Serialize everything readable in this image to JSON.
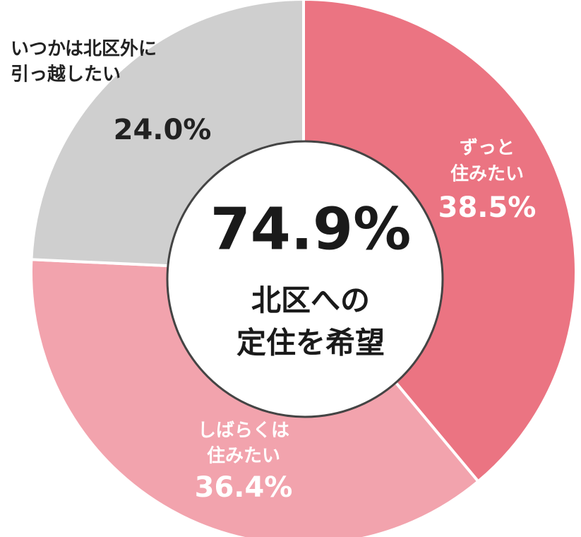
{
  "chart_data": {
    "type": "donut",
    "categories": [
      [
        "ずっと",
        "住みたい"
      ],
      [
        "しばらくは",
        "住みたい"
      ],
      [
        "いつかは北区外に",
        "引っ越したい"
      ]
    ],
    "values": [
      38.5,
      36.4,
      24.0
    ],
    "value_labels": [
      "38.5%",
      "36.4%",
      "24.0%"
    ],
    "colors": [
      "#eb7482",
      "#f2a3ad",
      "#cfcfcf"
    ],
    "annotations": [
      "74.9%",
      "北区への",
      "定住を希望"
    ]
  }
}
